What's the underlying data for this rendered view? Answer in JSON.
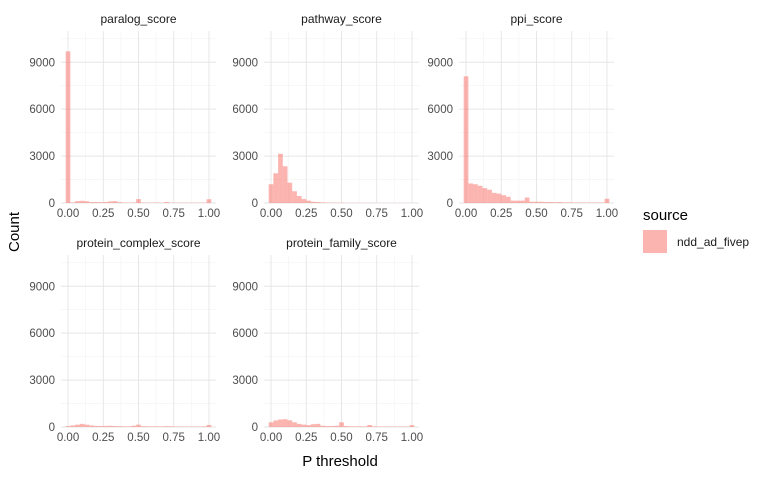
{
  "chart_data": {
    "type": "bar",
    "subtype": "faceted-histogram",
    "xlabel": "P threshold",
    "ylabel": "Count",
    "xlim": [
      -0.05,
      1.05
    ],
    "ylim": [
      0,
      11000
    ],
    "x_ticks": [
      0.0,
      0.25,
      0.5,
      0.75,
      1.0
    ],
    "x_tick_labels": [
      "0.00",
      "0.25",
      "0.50",
      "0.75",
      "1.00"
    ],
    "y_ticks": [
      0,
      3000,
      6000,
      9000
    ],
    "y_tick_labels": [
      "0",
      "3000",
      "6000",
      "9000"
    ],
    "grid": true,
    "bin_width": 0.0333,
    "bin_centers": [
      0.0,
      0.0333,
      0.0667,
      0.1,
      0.1333,
      0.1667,
      0.2,
      0.2333,
      0.2667,
      0.3,
      0.3333,
      0.3667,
      0.4,
      0.4333,
      0.4667,
      0.5,
      0.5333,
      0.5667,
      0.6,
      0.6333,
      0.6667,
      0.7,
      0.7333,
      0.7667,
      0.8,
      0.8333,
      0.8667,
      0.9,
      0.9333,
      0.9667,
      1.0
    ],
    "legend": {
      "title": "source",
      "position": "right",
      "entries": [
        "ndd_ad_fivep"
      ]
    },
    "fill_color": "#F8766D",
    "fill_opacity": 0.55,
    "panels": [
      {
        "title": "paralog_score",
        "counts": [
          9700,
          40,
          120,
          140,
          110,
          60,
          60,
          50,
          60,
          100,
          120,
          50,
          30,
          20,
          30,
          250,
          30,
          20,
          20,
          30,
          20,
          60,
          20,
          20,
          20,
          20,
          20,
          20,
          20,
          20,
          240
        ]
      },
      {
        "title": "pathway_score",
        "counts": [
          1200,
          1900,
          3150,
          2350,
          1300,
          750,
          450,
          250,
          150,
          80,
          60,
          40,
          30,
          20,
          20,
          20,
          10,
          10,
          10,
          10,
          10,
          10,
          5,
          5,
          5,
          5,
          5,
          5,
          5,
          5,
          5
        ]
      },
      {
        "title": "ppi_score",
        "counts": [
          8100,
          1250,
          1200,
          1100,
          950,
          850,
          650,
          600,
          500,
          400,
          150,
          150,
          150,
          350,
          80,
          80,
          80,
          60,
          60,
          50,
          60,
          40,
          40,
          30,
          30,
          30,
          30,
          30,
          30,
          30,
          270
        ]
      },
      {
        "title": "protein_complex_score",
        "counts": [
          60,
          100,
          150,
          200,
          150,
          100,
          70,
          60,
          70,
          80,
          60,
          50,
          40,
          40,
          80,
          150,
          50,
          40,
          40,
          40,
          40,
          50,
          40,
          30,
          30,
          30,
          30,
          30,
          30,
          40,
          130
        ]
      },
      {
        "title": "protein_family_score",
        "counts": [
          300,
          420,
          480,
          500,
          430,
          300,
          200,
          150,
          120,
          180,
          200,
          80,
          60,
          60,
          80,
          300,
          60,
          40,
          40,
          40,
          40,
          130,
          40,
          30,
          30,
          30,
          30,
          30,
          30,
          30,
          120
        ]
      }
    ]
  }
}
